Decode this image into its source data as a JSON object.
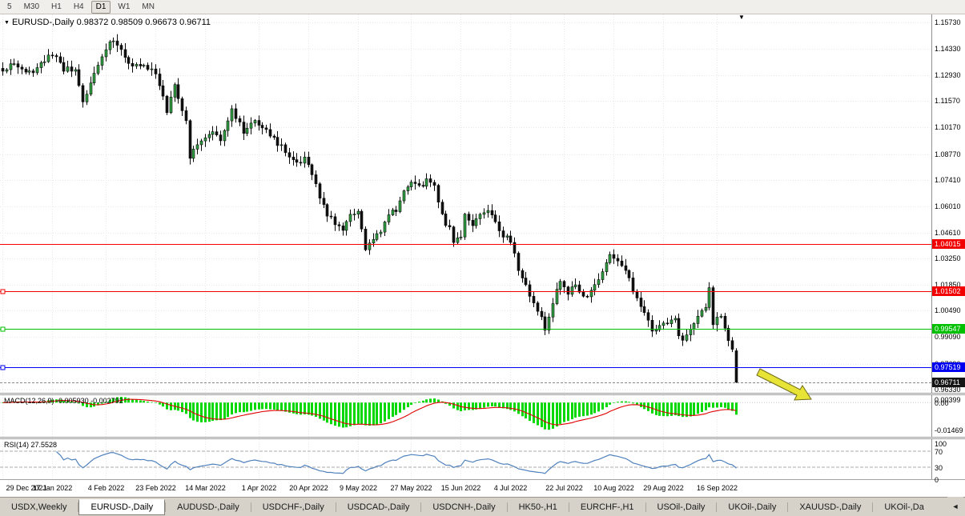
{
  "icons": {
    "dropdown_marker": "▼",
    "shift_marker": "▼",
    "tabs_scroll_left": "◄"
  },
  "toolbar": {
    "timeframes": [
      {
        "label": "5"
      },
      {
        "label": "M30"
      },
      {
        "label": "H1"
      },
      {
        "label": "H4"
      },
      {
        "label": "D1",
        "active": true
      },
      {
        "label": "W1"
      },
      {
        "label": "MN"
      }
    ]
  },
  "chart": {
    "symbol_title": "EURUSD-,Daily",
    "ohlc_text": "0.98372 0.98509 0.96673 0.96711",
    "price_axis_labels": [
      {
        "label": "1.15730",
        "value": 1.1573
      },
      {
        "label": "1.14330",
        "value": 1.1433
      },
      {
        "label": "1.12930",
        "value": 1.1293
      },
      {
        "label": "1.11570",
        "value": 1.1157
      },
      {
        "label": "1.10170",
        "value": 1.1017
      },
      {
        "label": "1.08770",
        "value": 1.0877
      },
      {
        "label": "1.07410",
        "value": 1.0741
      },
      {
        "label": "1.06010",
        "value": 1.0601
      },
      {
        "label": "1.04610",
        "value": 1.0461
      },
      {
        "label": "1.03250",
        "value": 1.0325
      },
      {
        "label": "1.01850",
        "value": 1.0185
      },
      {
        "label": "1.00490",
        "value": 1.0049
      },
      {
        "label": "0.99090",
        "value": 0.9909
      },
      {
        "label": "0.97690",
        "value": 0.9769
      },
      {
        "label": "0.96330",
        "value": 0.9633
      }
    ],
    "hlines": [
      {
        "label": "1.04015",
        "value": 1.04015,
        "color": "#f20000",
        "handle": false
      },
      {
        "label": "1.01502",
        "value": 1.01502,
        "color": "#f20000",
        "handle": true
      },
      {
        "label": "0.99547",
        "value": 0.99547,
        "color": "#00c000",
        "handle": true
      },
      {
        "label": "0.97519",
        "value": 0.97519,
        "color": "#0000f0",
        "handle": true
      }
    ],
    "current_price": {
      "label": "0.96711",
      "value": 0.96711,
      "color": "#151515"
    }
  },
  "macd_panel": {
    "name": "MACD(12,26,9)",
    "value_text": "-0.005930 -0.002792",
    "axis_labels": [
      {
        "label": "0.00399",
        "value": 0.00399
      },
      {
        "label": "0.00",
        "value": 0
      },
      {
        "label": "-0.01469",
        "value": -0.01469
      }
    ]
  },
  "rsi_panel": {
    "name": "RSI(14)",
    "value_text": "27.5528",
    "axis_labels": [
      {
        "label": "100",
        "value": 100
      },
      {
        "label": "70",
        "value": 70
      },
      {
        "label": "30",
        "value": 30
      },
      {
        "label": "0",
        "value": 0
      }
    ],
    "levels": [
      70,
      30
    ]
  },
  "date_axis": [
    {
      "label": "29 Dec 2021",
      "index": 0
    },
    {
      "label": "17 Jan 2022",
      "index": 13
    },
    {
      "label": "4 Feb 2022",
      "index": 27
    },
    {
      "label": "23 Feb 2022",
      "index": 40
    },
    {
      "label": "14 Mar 2022",
      "index": 53
    },
    {
      "label": "1 Apr 2022",
      "index": 67
    },
    {
      "label": "20 Apr 2022",
      "index": 80
    },
    {
      "label": "9 May 2022",
      "index": 93
    },
    {
      "label": "27 May 2022",
      "index": 107
    },
    {
      "label": "15 Jun 2022",
      "index": 120
    },
    {
      "label": "4 Jul 2022",
      "index": 133
    },
    {
      "label": "22 Jul 2022",
      "index": 147
    },
    {
      "label": "10 Aug 2022",
      "index": 160
    },
    {
      "label": "29 Aug 2022",
      "index": 173
    },
    {
      "label": "16 Sep 2022",
      "index": 187
    }
  ],
  "tabs": {
    "items": [
      {
        "label": "USDX,Weekly"
      },
      {
        "label": "EURUSD-,Daily",
        "active": true
      },
      {
        "label": "AUDUSD-,Daily"
      },
      {
        "label": "USDCHF-,Daily"
      },
      {
        "label": "USDCAD-,Daily"
      },
      {
        "label": "USDCNH-,Daily"
      },
      {
        "label": "HK50-,H1"
      },
      {
        "label": "EURCHF-,H1"
      },
      {
        "label": "USOil-,Daily"
      },
      {
        "label": "UKOil-,Daily"
      },
      {
        "label": "XAUUSD-,Daily"
      },
      {
        "label": "UKOil-,Da"
      }
    ]
  },
  "colors": {
    "candle_up": "#2f9e41",
    "candle_down": "#101010",
    "candle_stroke": "#0a0a0a",
    "grid": "#e8e8e8",
    "macd_hist": "#00d800",
    "macd_signal": "#e00000",
    "rsi_line": "#4f81bd",
    "level_dash": "#a8a8a8",
    "bid_line": "#888888",
    "arrow_fill": "#e8e437",
    "arrow_stroke": "#6f6b15"
  },
  "chart_data": {
    "type": "candlestick",
    "symbol": "EURUSD-",
    "timeframe": "Daily",
    "ylim": [
      0.9615,
      1.1615
    ],
    "num_candles": 193,
    "candle_spacing_px": 4.77,
    "last_candle": {
      "open": 0.98372,
      "high": 0.98509,
      "low": 0.96673,
      "close": 0.96711
    },
    "waypoints": [
      [
        0,
        1.131
      ],
      [
        3,
        1.136
      ],
      [
        6,
        1.13
      ],
      [
        9,
        1.133
      ],
      [
        13,
        1.141
      ],
      [
        16,
        1.133
      ],
      [
        19,
        1.131
      ],
      [
        21,
        1.115
      ],
      [
        24,
        1.13
      ],
      [
        28,
        1.148
      ],
      [
        31,
        1.144
      ],
      [
        34,
        1.133
      ],
      [
        37,
        1.136
      ],
      [
        40,
        1.13
      ],
      [
        42,
        1.119
      ],
      [
        43,
        1.111
      ],
      [
        45,
        1.125
      ],
      [
        48,
        1.105
      ],
      [
        49,
        1.086
      ],
      [
        51,
        1.092
      ],
      [
        53,
        1.095
      ],
      [
        55,
        1.101
      ],
      [
        57,
        1.096
      ],
      [
        60,
        1.112
      ],
      [
        63,
        1.099
      ],
      [
        66,
        1.106
      ],
      [
        68,
        1.103
      ],
      [
        71,
        1.096
      ],
      [
        74,
        1.089
      ],
      [
        77,
        1.082
      ],
      [
        79,
        1.085
      ],
      [
        81,
        1.076
      ],
      [
        83,
        1.065
      ],
      [
        85,
        1.056
      ],
      [
        87,
        1.05
      ],
      [
        89,
        1.048
      ],
      [
        91,
        1.055
      ],
      [
        93,
        1.057
      ],
      [
        95,
        1.038
      ],
      [
        97,
        1.041
      ],
      [
        99,
        1.048
      ],
      [
        101,
        1.056
      ],
      [
        103,
        1.058
      ],
      [
        105,
        1.068
      ],
      [
        107,
        1.073
      ],
      [
        109,
        1.07
      ],
      [
        111,
        1.074
      ],
      [
        113,
        1.071
      ],
      [
        115,
        1.055
      ],
      [
        117,
        1.048
      ],
      [
        118,
        1.042
      ],
      [
        120,
        1.045
      ],
      [
        121,
        1.056
      ],
      [
        123,
        1.051
      ],
      [
        125,
        1.056
      ],
      [
        127,
        1.058
      ],
      [
        129,
        1.052
      ],
      [
        131,
        1.044
      ],
      [
        133,
        1.042
      ],
      [
        135,
        1.026
      ],
      [
        137,
        1.018
      ],
      [
        139,
        1.008
      ],
      [
        141,
        1.001
      ],
      [
        142,
        0.996
      ],
      [
        144,
        1.009
      ],
      [
        146,
        1.021
      ],
      [
        148,
        1.013
      ],
      [
        150,
        1.02
      ],
      [
        152,
        1.011
      ],
      [
        154,
        1.016
      ],
      [
        156,
        1.022
      ],
      [
        158,
        1.029
      ],
      [
        159,
        1.034
      ],
      [
        161,
        1.03
      ],
      [
        163,
        1.026
      ],
      [
        165,
        1.016
      ],
      [
        167,
        1.008
      ],
      [
        169,
        1.0
      ],
      [
        170,
        0.994
      ],
      [
        172,
        0.997
      ],
      [
        174,
        0.999
      ],
      [
        176,
        1.0
      ],
      [
        177,
        0.993
      ],
      [
        178,
        0.99
      ],
      [
        180,
        0.996
      ],
      [
        182,
        1.001
      ],
      [
        184,
        1.008
      ],
      [
        185,
        1.016
      ],
      [
        186,
        0.998
      ],
      [
        187,
        1.0
      ],
      [
        188,
        1.001
      ],
      [
        189,
        0.996
      ],
      [
        190,
        0.989
      ],
      [
        191,
        0.9835
      ],
      [
        192,
        0.9671
      ]
    ],
    "noise": 0.0016,
    "seed": 11,
    "macd": {
      "ylim": [
        -0.0185,
        0.004
      ],
      "display_min": -0.01469
    },
    "rsi": {
      "period": 14
    },
    "hline_levels": [
      1.04015,
      1.01502,
      0.99547,
      0.97519
    ],
    "current_price": 0.96711
  }
}
